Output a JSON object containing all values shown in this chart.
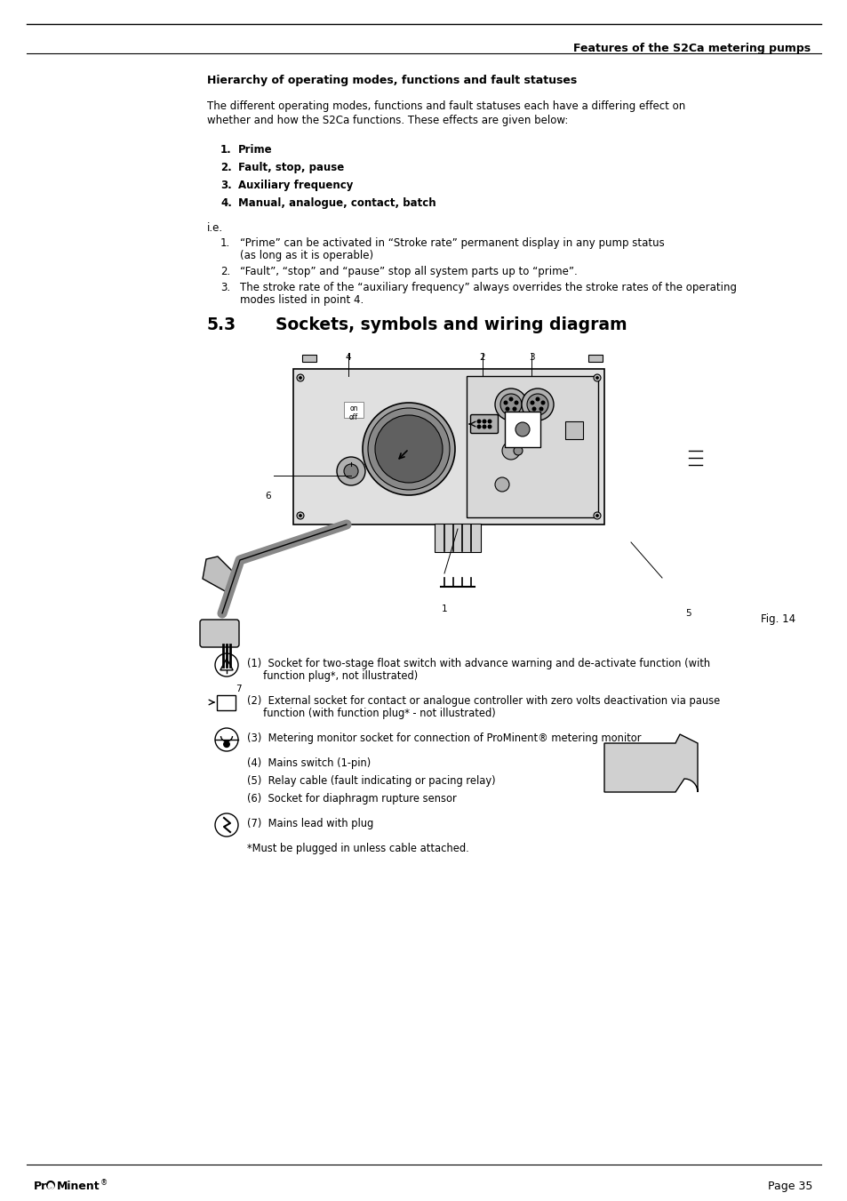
{
  "page_title": "Features of the S2Ca metering pumps",
  "section_title": "Hierarchy of operating modes, functions and fault statuses",
  "intro_text_1": "The different operating modes, functions and fault statuses each have a differing effect on",
  "intro_text_2": "whether and how the S2Ca functions. These effects are given below:",
  "numbered_items": [
    [
      "1.",
      "Prime"
    ],
    [
      "2.",
      "Fault, stop, pause"
    ],
    [
      "3.",
      "Auxiliary frequency"
    ],
    [
      "4.",
      "Manual, analogue, contact, batch"
    ]
  ],
  "ie_label": "i.e.",
  "ie_items": [
    [
      "1.",
      "“Prime” can be activated in “Stroke rate” permanent display in any pump status"
    ],
    [
      "",
      "(as long as it is operable)"
    ],
    [
      "2.",
      "“Fault”, “stop” and “pause” stop all system parts up to “prime”."
    ],
    [
      "3.",
      "The stroke rate of the “auxiliary frequency” always overrides the stroke rates of the operating"
    ],
    [
      "",
      "modes listed in point 4."
    ]
  ],
  "section_53_num": "5.3",
  "section_53_title": "Sockets, symbols and wiring diagram",
  "fig_label": "Fig. 14",
  "legend_items": [
    "(1)  Socket for two-stage float switch with advance warning and de-activate function (with",
    "     function plug*, not illustrated)",
    "(2)  External socket for contact or analogue controller with zero volts deactivation via pause",
    "     function (with function plug* - not illustrated)",
    "(3)  Metering monitor socket for connection of ProMinent® metering monitor",
    "(4)  Mains switch (1-pin)",
    "(5)  Relay cable (fault indicating or pacing relay)",
    "(6)  Socket for diaphragm rupture sensor",
    "(7)  Mains lead with plug",
    "*Must be plugged in unless cable attached."
  ],
  "footer_left": "Pr○Minent®",
  "footer_right": "Page 35",
  "bg_color": "#ffffff"
}
